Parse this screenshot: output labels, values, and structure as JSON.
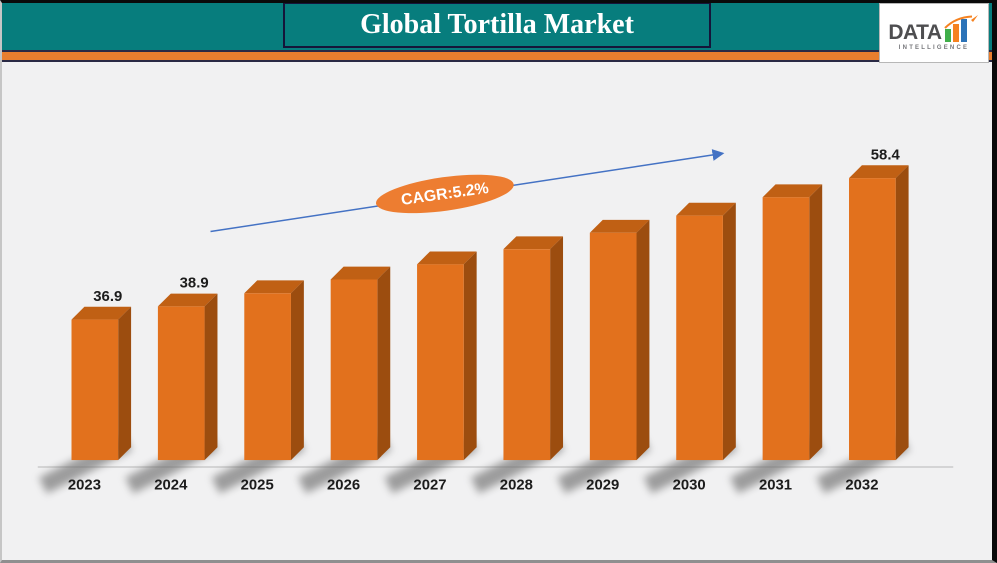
{
  "header": {
    "title": "Global Tortilla Market"
  },
  "brand": {
    "name": "DATA",
    "subtitle": "INTELLIGENCE"
  },
  "chart_data": {
    "type": "bar",
    "title": "Global Tortilla Market",
    "annotation": "CAGR:5.2%",
    "categories": [
      "2023",
      "2024",
      "2025",
      "2026",
      "2027",
      "2028",
      "2029",
      "2030",
      "2031",
      "2032"
    ],
    "values": [
      36.9,
      38.9,
      40.9,
      43.0,
      45.3,
      47.6,
      50.1,
      52.7,
      55.5,
      58.4
    ],
    "visible_value_labels": {
      "2023": "36.9",
      "2024": "38.9",
      "2032": "58.4"
    },
    "xlabel": "",
    "ylabel": "",
    "legend": "none",
    "axes_visible": false,
    "style": "3d-bars-with-floor-shadows"
  },
  "colors": {
    "teal_header": "#077d7d",
    "stripe_orange": "#e87e2e",
    "background": "#f1f1f2",
    "title_text": "#ffffff",
    "bar_front": "#e2711d",
    "bar_side": "#9c4d0f",
    "bar_top": "#c06014",
    "shadow": "#6f6f6f",
    "trend_blue": "#4472c4",
    "ellipse_orange": "#ed7d31",
    "label_dark": "#1c1c1c",
    "logo_bar_green": "#3fae49",
    "logo_bar_orange": "#f58220",
    "logo_bar_blue": "#2b73b8"
  }
}
